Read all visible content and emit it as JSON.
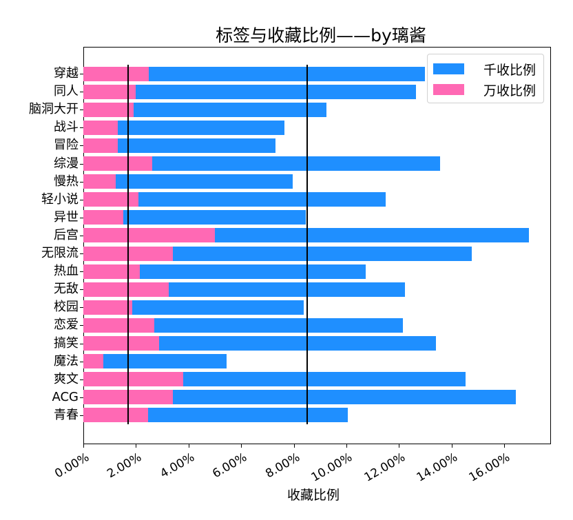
{
  "chart_data": {
    "type": "bar",
    "orientation": "horizontal",
    "title": "标签与收藏比例——by璃酱",
    "xlabel": "收藏比例",
    "ylabel": "",
    "xlim": [
      0,
      17.8
    ],
    "x_tick_labels": [
      "0.00%",
      "2.00%",
      "4.00%",
      "6.00%",
      "8.00%",
      "10.00%",
      "12.00%",
      "14.00%",
      "16.00%"
    ],
    "x_ticks": [
      0,
      2,
      4,
      6,
      8,
      10,
      12,
      14,
      16
    ],
    "categories": [
      "穿越",
      "同人",
      "脑洞大开",
      "战斗",
      "冒险",
      "综漫",
      "慢热",
      "轻小说",
      "异世",
      "后宫",
      "无限流",
      "热血",
      "无敌",
      "校园",
      "恋爱",
      "搞笑",
      "魔法",
      "爽文",
      "ACG",
      "青春"
    ],
    "series": [
      {
        "name": "千收比例",
        "color": "#1f8fff",
        "values": [
          12.98,
          12.64,
          9.24,
          7.64,
          7.3,
          13.56,
          7.96,
          11.49,
          8.46,
          16.94,
          14.76,
          10.73,
          12.23,
          8.38,
          12.15,
          13.4,
          5.45,
          14.53,
          16.44,
          10.05
        ]
      },
      {
        "name": "万收比例",
        "color": "#ff69b4",
        "values": [
          2.49,
          1.99,
          1.91,
          1.31,
          1.31,
          2.62,
          1.23,
          2.09,
          1.52,
          5.0,
          3.4,
          2.15,
          3.25,
          1.86,
          2.7,
          2.88,
          0.76,
          3.8,
          3.4,
          2.46
        ]
      }
    ],
    "reference_lines": [
      1.7,
      8.51
    ],
    "legend_position": "upper right",
    "grid": false
  }
}
